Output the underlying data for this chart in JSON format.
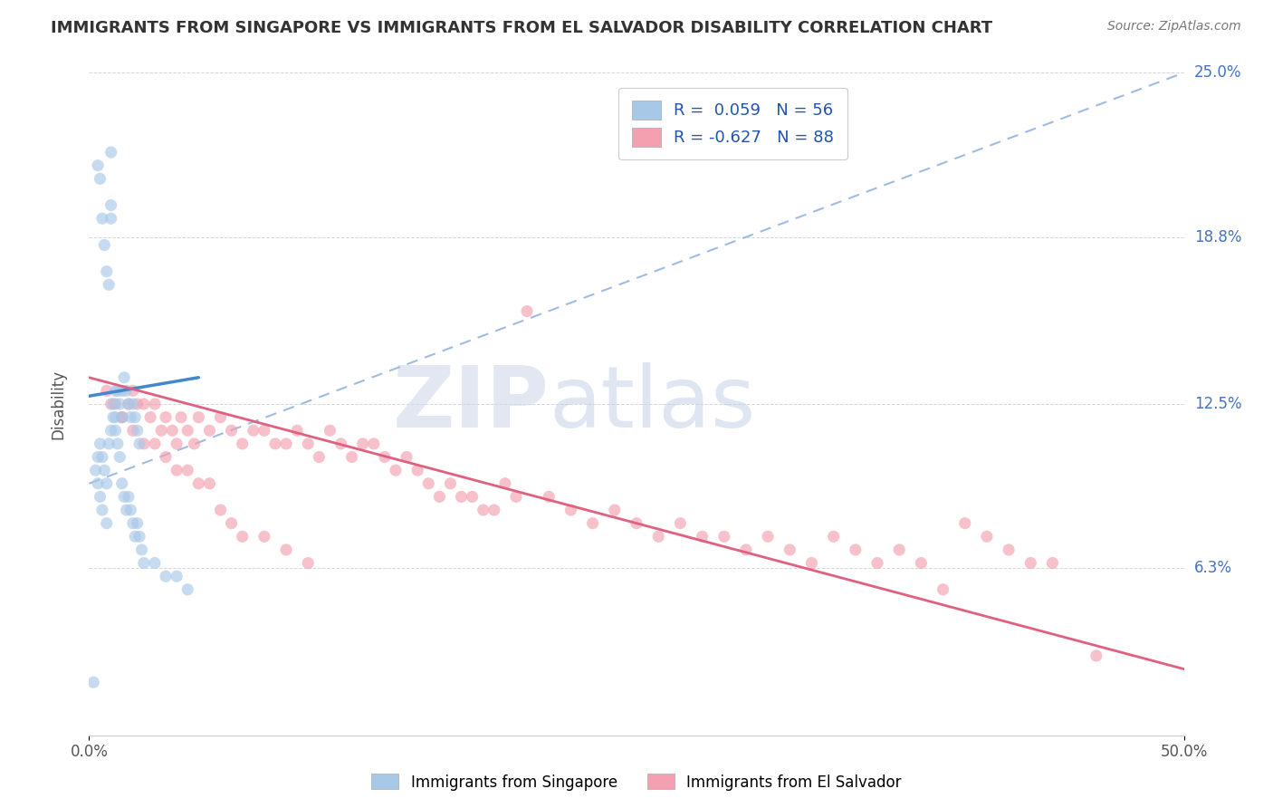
{
  "title": "IMMIGRANTS FROM SINGAPORE VS IMMIGRANTS FROM EL SALVADOR DISABILITY CORRELATION CHART",
  "source": "Source: ZipAtlas.com",
  "ylabel": "Disability",
  "xlim": [
    0.0,
    0.5
  ],
  "ylim": [
    0.0,
    0.25
  ],
  "xtick_labels": [
    "0.0%",
    "50.0%"
  ],
  "xtick_positions": [
    0.0,
    0.5
  ],
  "ytick_labels": [
    "6.3%",
    "12.5%",
    "18.8%",
    "25.0%"
  ],
  "ytick_positions": [
    0.063,
    0.125,
    0.188,
    0.25
  ],
  "r_singapore": 0.059,
  "n_singapore": 56,
  "r_el_salvador": -0.627,
  "n_el_salvador": 88,
  "color_singapore": "#a8c8e8",
  "color_el_salvador": "#f4a0b0",
  "color_singapore_line": "#4488cc",
  "color_el_salvador_line": "#e06080",
  "color_dashed": "#88aadd",
  "singapore_x": [
    0.004,
    0.005,
    0.006,
    0.007,
    0.008,
    0.009,
    0.01,
    0.01,
    0.01,
    0.011,
    0.012,
    0.012,
    0.013,
    0.014,
    0.015,
    0.015,
    0.016,
    0.017,
    0.018,
    0.019,
    0.02,
    0.021,
    0.022,
    0.023,
    0.004,
    0.005,
    0.006,
    0.007,
    0.008,
    0.009,
    0.01,
    0.011,
    0.012,
    0.013,
    0.014,
    0.015,
    0.016,
    0.017,
    0.018,
    0.019,
    0.02,
    0.021,
    0.022,
    0.023,
    0.024,
    0.025,
    0.03,
    0.035,
    0.04,
    0.045,
    0.003,
    0.004,
    0.005,
    0.006,
    0.002,
    0.008
  ],
  "singapore_y": [
    0.215,
    0.21,
    0.195,
    0.185,
    0.175,
    0.17,
    0.22,
    0.2,
    0.195,
    0.125,
    0.13,
    0.12,
    0.13,
    0.125,
    0.13,
    0.12,
    0.135,
    0.13,
    0.125,
    0.12,
    0.125,
    0.12,
    0.115,
    0.11,
    0.105,
    0.11,
    0.105,
    0.1,
    0.095,
    0.11,
    0.115,
    0.12,
    0.115,
    0.11,
    0.105,
    0.095,
    0.09,
    0.085,
    0.09,
    0.085,
    0.08,
    0.075,
    0.08,
    0.075,
    0.07,
    0.065,
    0.065,
    0.06,
    0.06,
    0.055,
    0.1,
    0.095,
    0.09,
    0.085,
    0.02,
    0.08
  ],
  "el_salvador_x": [
    0.008,
    0.01,
    0.012,
    0.015,
    0.018,
    0.02,
    0.022,
    0.025,
    0.028,
    0.03,
    0.033,
    0.035,
    0.038,
    0.04,
    0.042,
    0.045,
    0.048,
    0.05,
    0.055,
    0.06,
    0.065,
    0.07,
    0.075,
    0.08,
    0.085,
    0.09,
    0.095,
    0.1,
    0.105,
    0.11,
    0.115,
    0.12,
    0.125,
    0.13,
    0.135,
    0.14,
    0.145,
    0.15,
    0.155,
    0.16,
    0.165,
    0.17,
    0.175,
    0.18,
    0.185,
    0.19,
    0.195,
    0.2,
    0.21,
    0.22,
    0.23,
    0.24,
    0.25,
    0.26,
    0.27,
    0.28,
    0.29,
    0.3,
    0.31,
    0.32,
    0.33,
    0.34,
    0.35,
    0.36,
    0.37,
    0.38,
    0.39,
    0.4,
    0.41,
    0.42,
    0.43,
    0.44,
    0.015,
    0.02,
    0.025,
    0.03,
    0.035,
    0.04,
    0.045,
    0.05,
    0.055,
    0.06,
    0.065,
    0.07,
    0.08,
    0.09,
    0.1,
    0.46
  ],
  "el_salvador_y": [
    0.13,
    0.125,
    0.125,
    0.12,
    0.125,
    0.13,
    0.125,
    0.125,
    0.12,
    0.125,
    0.115,
    0.12,
    0.115,
    0.11,
    0.12,
    0.115,
    0.11,
    0.12,
    0.115,
    0.12,
    0.115,
    0.11,
    0.115,
    0.115,
    0.11,
    0.11,
    0.115,
    0.11,
    0.105,
    0.115,
    0.11,
    0.105,
    0.11,
    0.11,
    0.105,
    0.1,
    0.105,
    0.1,
    0.095,
    0.09,
    0.095,
    0.09,
    0.09,
    0.085,
    0.085,
    0.095,
    0.09,
    0.16,
    0.09,
    0.085,
    0.08,
    0.085,
    0.08,
    0.075,
    0.08,
    0.075,
    0.075,
    0.07,
    0.075,
    0.07,
    0.065,
    0.075,
    0.07,
    0.065,
    0.07,
    0.065,
    0.055,
    0.08,
    0.075,
    0.07,
    0.065,
    0.065,
    0.12,
    0.115,
    0.11,
    0.11,
    0.105,
    0.1,
    0.1,
    0.095,
    0.095,
    0.085,
    0.08,
    0.075,
    0.075,
    0.07,
    0.065,
    0.03
  ],
  "sg_line_x0": 0.0,
  "sg_line_x1": 0.05,
  "sg_line_y0": 0.128,
  "sg_line_y1": 0.135,
  "es_line_x0": 0.0,
  "es_line_x1": 0.5,
  "es_line_y0": 0.135,
  "es_line_y1": 0.025,
  "dash_line_x0": 0.0,
  "dash_line_x1": 0.5,
  "dash_line_y0": 0.095,
  "dash_line_y1": 0.25,
  "watermark_zip": "ZIP",
  "watermark_atlas": "atlas",
  "background_color": "#ffffff",
  "grid_color": "#cccccc"
}
